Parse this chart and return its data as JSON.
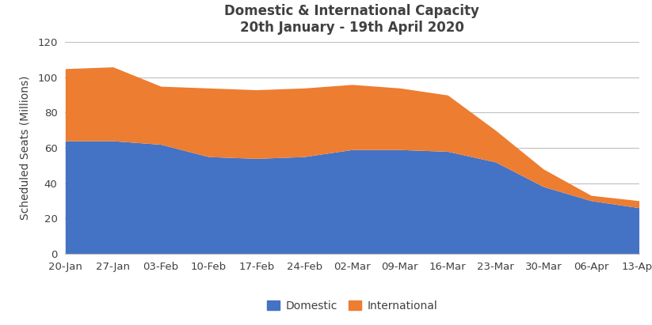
{
  "title_line1": "Domestic & International Capacity",
  "title_line2": "20th January - 19th April 2020",
  "ylabel": "Scheduled Seats (Millions)",
  "x_labels": [
    "20-Jan",
    "27-Jan",
    "03-Feb",
    "10-Feb",
    "17-Feb",
    "24-Feb",
    "02-Mar",
    "09-Mar",
    "16-Mar",
    "23-Mar",
    "30-Mar",
    "06-Apr",
    "13-Apr"
  ],
  "domestic": [
    64,
    64,
    62,
    55,
    54,
    55,
    59,
    59,
    58,
    52,
    38,
    30,
    26
  ],
  "international": [
    41,
    42,
    33,
    39,
    39,
    39,
    37,
    35,
    32,
    18,
    10,
    3,
    4
  ],
  "domestic_color": "#4472C4",
  "international_color": "#ED7D31",
  "ylim": [
    0,
    120
  ],
  "yticks": [
    0,
    20,
    40,
    60,
    80,
    100,
    120
  ],
  "title_color": "#404040",
  "title_fontsize": 12,
  "axis_label_fontsize": 10,
  "tick_fontsize": 9.5,
  "legend_fontsize": 10,
  "background_color": "#FFFFFF",
  "grid_color": "#BFBFBF"
}
